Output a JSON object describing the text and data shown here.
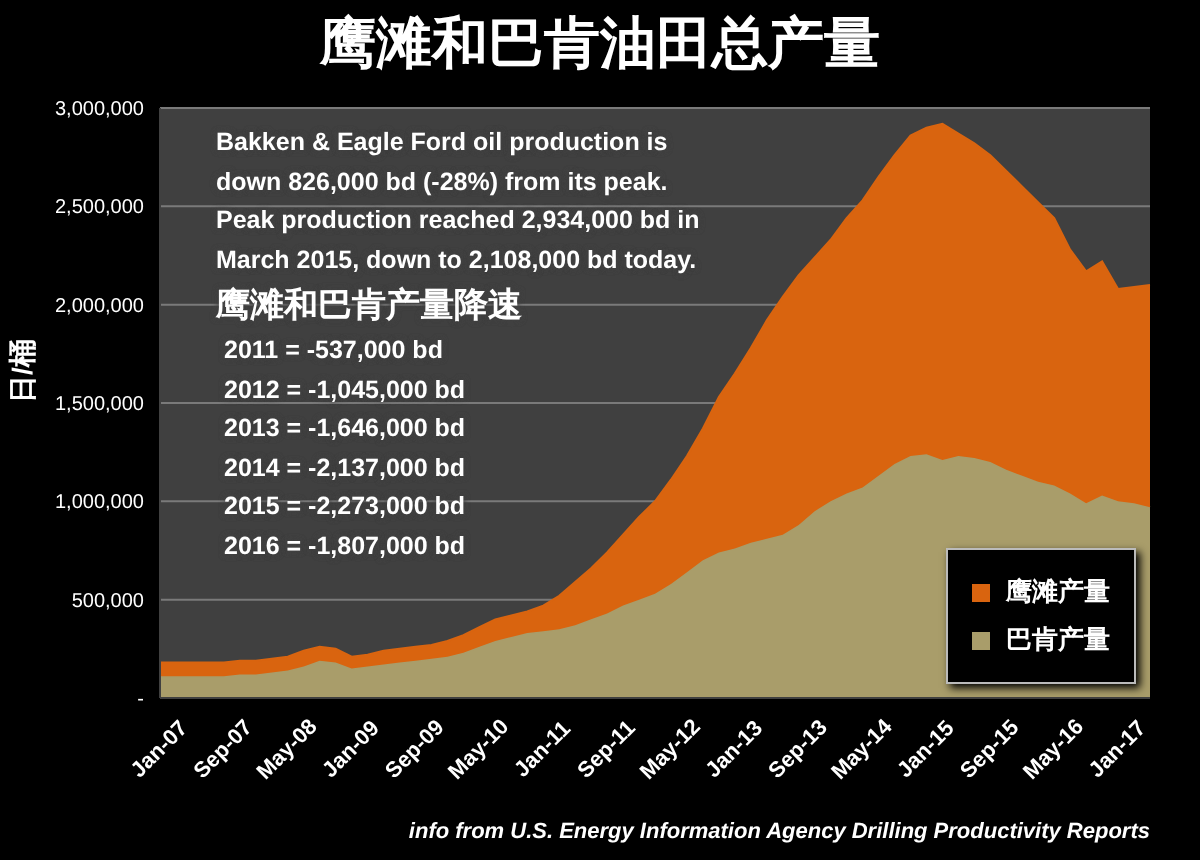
{
  "chart_data": {
    "type": "area",
    "stacked": true,
    "title": "鹰滩和巴肯油田总产量",
    "ylabel": "日/桶",
    "categories": [
      "Jan-07",
      null,
      null,
      null,
      "Sep-07",
      null,
      null,
      null,
      "May-08",
      null,
      null,
      null,
      "Jan-09",
      null,
      null,
      null,
      "Sep-09",
      null,
      null,
      null,
      "May-10",
      null,
      null,
      null,
      "Jan-11",
      null,
      null,
      null,
      "Sep-11",
      null,
      null,
      null,
      "May-12",
      null,
      null,
      null,
      "Jan-13",
      null,
      null,
      null,
      "Sep-13",
      null,
      null,
      null,
      "May-14",
      null,
      null,
      null,
      "Jan-15",
      null,
      null,
      null,
      "Sep-15",
      null,
      null,
      null,
      "May-16",
      null,
      null,
      null,
      "Jan-17",
      null,
      null
    ],
    "series": [
      {
        "name": "巴肯产量",
        "color": "#a99d6a",
        "values": [
          110000,
          110000,
          110000,
          110000,
          110000,
          120000,
          120000,
          130000,
          140000,
          160000,
          190000,
          180000,
          150000,
          160000,
          170000,
          180000,
          190000,
          200000,
          210000,
          230000,
          260000,
          290000,
          310000,
          330000,
          340000,
          350000,
          370000,
          400000,
          430000,
          470000,
          500000,
          530000,
          580000,
          640000,
          700000,
          740000,
          760000,
          790000,
          810000,
          830000,
          880000,
          950000,
          1000000,
          1040000,
          1070000,
          1130000,
          1190000,
          1230000,
          1240000,
          1210000,
          1230000,
          1220000,
          1200000,
          1160000,
          1130000,
          1100000,
          1080000,
          1040000,
          990000,
          1030000,
          1000000,
          990000,
          970000
        ]
      },
      {
        "name": "鹰滩产量",
        "color": "#d9640f",
        "values": [
          70000,
          70000,
          70000,
          70000,
          70000,
          70000,
          70000,
          70000,
          70000,
          80000,
          70000,
          70000,
          60000,
          60000,
          70000,
          70000,
          70000,
          70000,
          80000,
          90000,
          100000,
          110000,
          110000,
          110000,
          130000,
          170000,
          220000,
          260000,
          310000,
          360000,
          420000,
          470000,
          530000,
          590000,
          670000,
          790000,
          890000,
          990000,
          1110000,
          1210000,
          1270000,
          1290000,
          1330000,
          1400000,
          1460000,
          1520000,
          1570000,
          1630000,
          1660000,
          1710000,
          1640000,
          1600000,
          1560000,
          1520000,
          1470000,
          1420000,
          1360000,
          1240000,
          1180000,
          1190000,
          1080000,
          1100000,
          1130000
        ]
      }
    ],
    "ylim": [
      0,
      3000000
    ],
    "yticks": [
      {
        "value": 0,
        "label": "-"
      },
      {
        "value": 500000,
        "label": "500,000"
      },
      {
        "value": 1000000,
        "label": "1,000,000"
      },
      {
        "value": 1500000,
        "label": "1,500,000"
      },
      {
        "value": 2000000,
        "label": "2,000,000"
      },
      {
        "value": 2500000,
        "label": "2,500,000"
      },
      {
        "value": 3000000,
        "label": "3,000,000"
      }
    ],
    "grid": "y",
    "legend": "bottom right",
    "annotations": [
      "Bakken & Eagle Ford oil production is",
      "down 826,000 bd (-28%) from its peak.",
      "Peak production reached 2,934,000 bd in",
      "March 2015, down to 2,108,000 bd today.",
      "鹰滩和巴肯产量降速",
      "2011 = -537,000 bd",
      "2012 = -1,045,000 bd",
      "2013 = -1,646,000 bd",
      "2014 = -2,137,000 bd",
      "2015 = -2,273,000 bd",
      "2016 = -1,807,000 bd",
      "info from U.S. Energy Information Agency Drilling Productivity Reports"
    ]
  }
}
